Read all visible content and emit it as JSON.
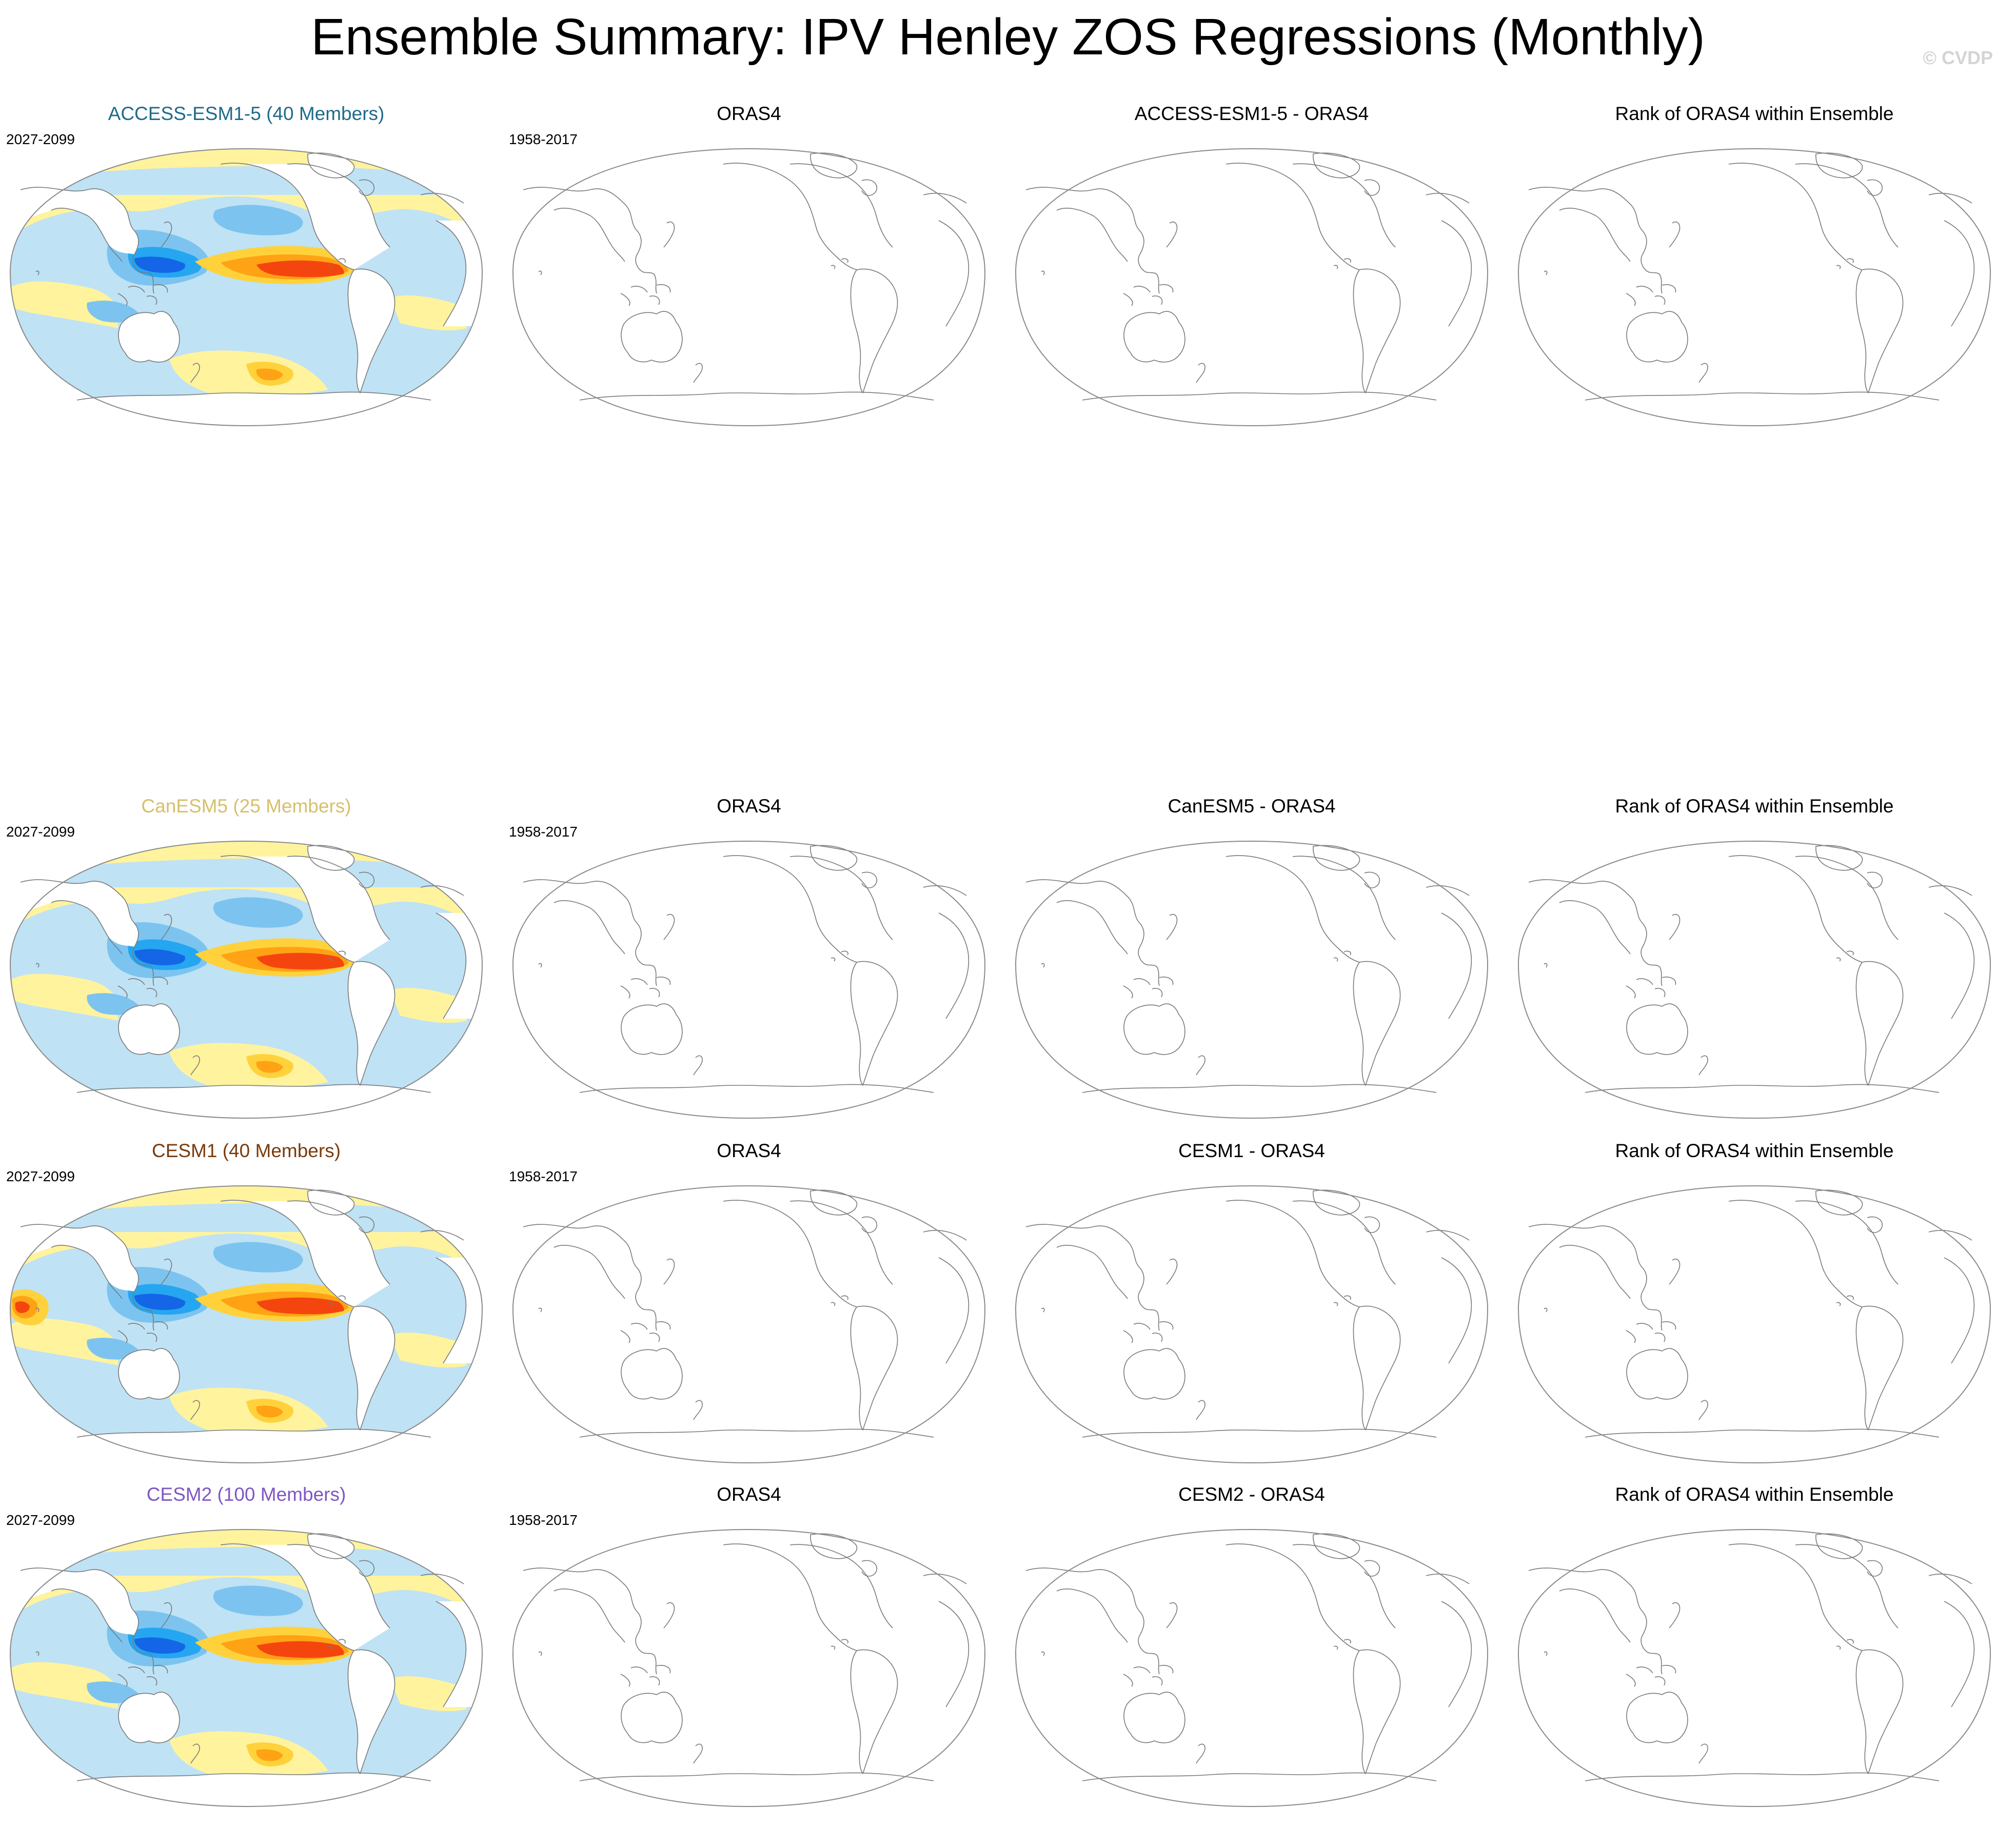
{
  "title": "Ensemble Summary: IPV Henley ZOS Regressions (Monthly)",
  "watermark": "© CVDP",
  "rows": [
    {
      "model_title": "ACCESS-ESM1-5 (40 Members)",
      "model_color": "#1e6b8a",
      "model_period": "2027-2099",
      "obs_title": "ORAS4",
      "obs_period": "1958-2017",
      "diff_title": "ACCESS-ESM1-5 - ORAS4",
      "rank_title": "Rank of ORAS4 within Ensemble"
    },
    {
      "model_title": "CanESM5 (25 Members)",
      "model_color": "#d7c06a",
      "model_period": "2027-2099",
      "obs_title": "ORAS4",
      "obs_period": "1958-2017",
      "diff_title": "CanESM5 - ORAS4",
      "rank_title": "Rank of ORAS4 within Ensemble"
    },
    {
      "model_title": "CESM1 (40 Members)",
      "model_color": "#7a3b0c",
      "model_period": "2027-2099",
      "obs_title": "ORAS4",
      "obs_period": "1958-2017",
      "diff_title": "CESM1 - ORAS4",
      "rank_title": "Rank of ORAS4 within Ensemble"
    },
    {
      "model_title": "CESM2 (100 Members)",
      "model_color": "#7e57c2",
      "model_period": "2027-2099",
      "obs_title": "ORAS4",
      "obs_period": "1958-2017",
      "diff_title": "CESM2 - ORAS4",
      "rank_title": "Rank of ORAS4 within Ensemble"
    }
  ],
  "colors": {
    "ocean_pos_weak": "#fff39e",
    "ocean_pos_mid": "#ffd23c",
    "ocean_pos_strong": "#ffa214",
    "ocean_pos_max": "#f5450f",
    "ocean_neg_weak": "#bfe2f5",
    "ocean_neg_mid": "#7cc4ef",
    "ocean_neg_strong": "#25a6f0",
    "ocean_neg_max": "#1466e6",
    "coast": "#7a7a7a"
  }
}
